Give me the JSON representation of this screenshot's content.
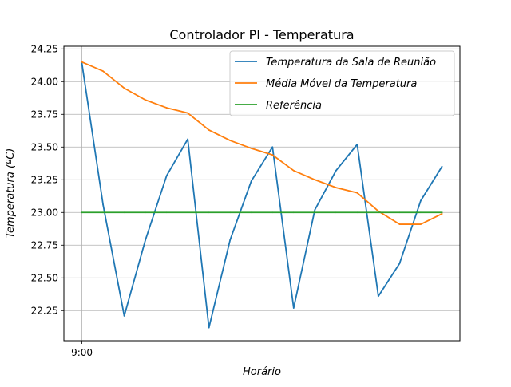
{
  "chart_data": {
    "type": "line",
    "title": "Controlador PI - Temperatura",
    "xlabel": "Horário",
    "ylabel": "Temperatura (ºC)",
    "x_tick_labels": [
      "9:00"
    ],
    "x": [
      0,
      1,
      2,
      3,
      4,
      5,
      6,
      7,
      8,
      9,
      10,
      11,
      12,
      13,
      14,
      15,
      16,
      17
    ],
    "xlim": [
      -0.85,
      17.85
    ],
    "ylim": [
      22.02,
      24.27
    ],
    "yticks": [
      "22.25",
      "22.50",
      "22.75",
      "23.00",
      "23.25",
      "23.50",
      "23.75",
      "24.00",
      "24.25"
    ],
    "grid": true,
    "legend_position": "top-right",
    "series": [
      {
        "name": "Temperatura da Sala de Reunião",
        "color": "#1f77b4",
        "values": [
          24.14,
          23.06,
          22.21,
          22.79,
          23.28,
          23.56,
          22.12,
          22.79,
          23.24,
          23.5,
          22.27,
          23.02,
          23.32,
          23.52,
          22.36,
          22.61,
          23.09,
          23.35
        ]
      },
      {
        "name": "Média Móvel da Temperatura",
        "color": "#ff7f0e",
        "values": [
          24.15,
          24.08,
          23.95,
          23.86,
          23.8,
          23.76,
          23.63,
          23.55,
          23.49,
          23.44,
          23.32,
          23.25,
          23.19,
          23.15,
          23.01,
          22.91,
          22.91,
          22.99
        ]
      },
      {
        "name": "Referência",
        "color": "#2ca02c",
        "values": [
          23.0,
          23.0,
          23.0,
          23.0,
          23.0,
          23.0,
          23.0,
          23.0,
          23.0,
          23.0,
          23.0,
          23.0,
          23.0,
          23.0,
          23.0,
          23.0,
          23.0,
          23.0
        ]
      }
    ]
  }
}
